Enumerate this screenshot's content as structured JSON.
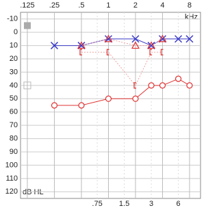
{
  "chart_data": {
    "type": "audiogram",
    "x_unit_label": "kHz",
    "y_unit_label": "dB HL",
    "xscale": "log",
    "xlim": [
      0.105,
      10.6
    ],
    "ylim": [
      -15,
      125
    ],
    "y_inverted": true,
    "grid": true,
    "xticks": [
      {
        "value": 0.125,
        "label": ".125"
      },
      {
        "value": 0.25,
        "label": ".25"
      },
      {
        "value": 0.5,
        "label": ".5"
      },
      1,
      2,
      4,
      8
    ],
    "xticks_minor": [
      {
        "value": 0.75,
        "label": ".75"
      },
      1.5,
      3,
      6
    ],
    "yticks": [
      -10,
      0,
      10,
      20,
      30,
      40,
      50,
      60,
      70,
      80,
      90,
      100,
      110,
      120
    ],
    "series": [
      {
        "color": "#3a3ac8",
        "marker": "x",
        "line": "solid",
        "x": [
          0.25,
          0.5,
          1,
          2,
          3,
          4,
          6,
          8
        ],
        "values": [
          10,
          10,
          5,
          5,
          10,
          5,
          5,
          5
        ]
      },
      {
        "color": "#e03030",
        "marker": "circle",
        "line": "solid",
        "x": [
          0.25,
          0.5,
          1,
          2,
          3,
          4,
          6,
          8
        ],
        "values": [
          55,
          55,
          50,
          50,
          40,
          40,
          35,
          40
        ]
      },
      {
        "color": "#e03030",
        "marker": "triangle",
        "line": "dotted",
        "x": [
          0.5,
          1,
          2,
          3,
          4
        ],
        "values": [
          10,
          5,
          10,
          10,
          5
        ]
      },
      {
        "color": "#e03030",
        "marker": "bracket",
        "line": "dotted",
        "x": [
          0.5,
          1,
          2,
          3,
          4
        ],
        "values": [
          15,
          15,
          40,
          15,
          15
        ]
      },
      {
        "color": "#aaaaaa",
        "marker": "square-filled",
        "line": "none",
        "x": [
          0.125
        ],
        "values": [
          -5
        ]
      },
      {
        "color": "#bbbbbb",
        "marker": "square-open",
        "line": "none",
        "x": [
          0.125
        ],
        "values": [
          40
        ]
      }
    ]
  }
}
